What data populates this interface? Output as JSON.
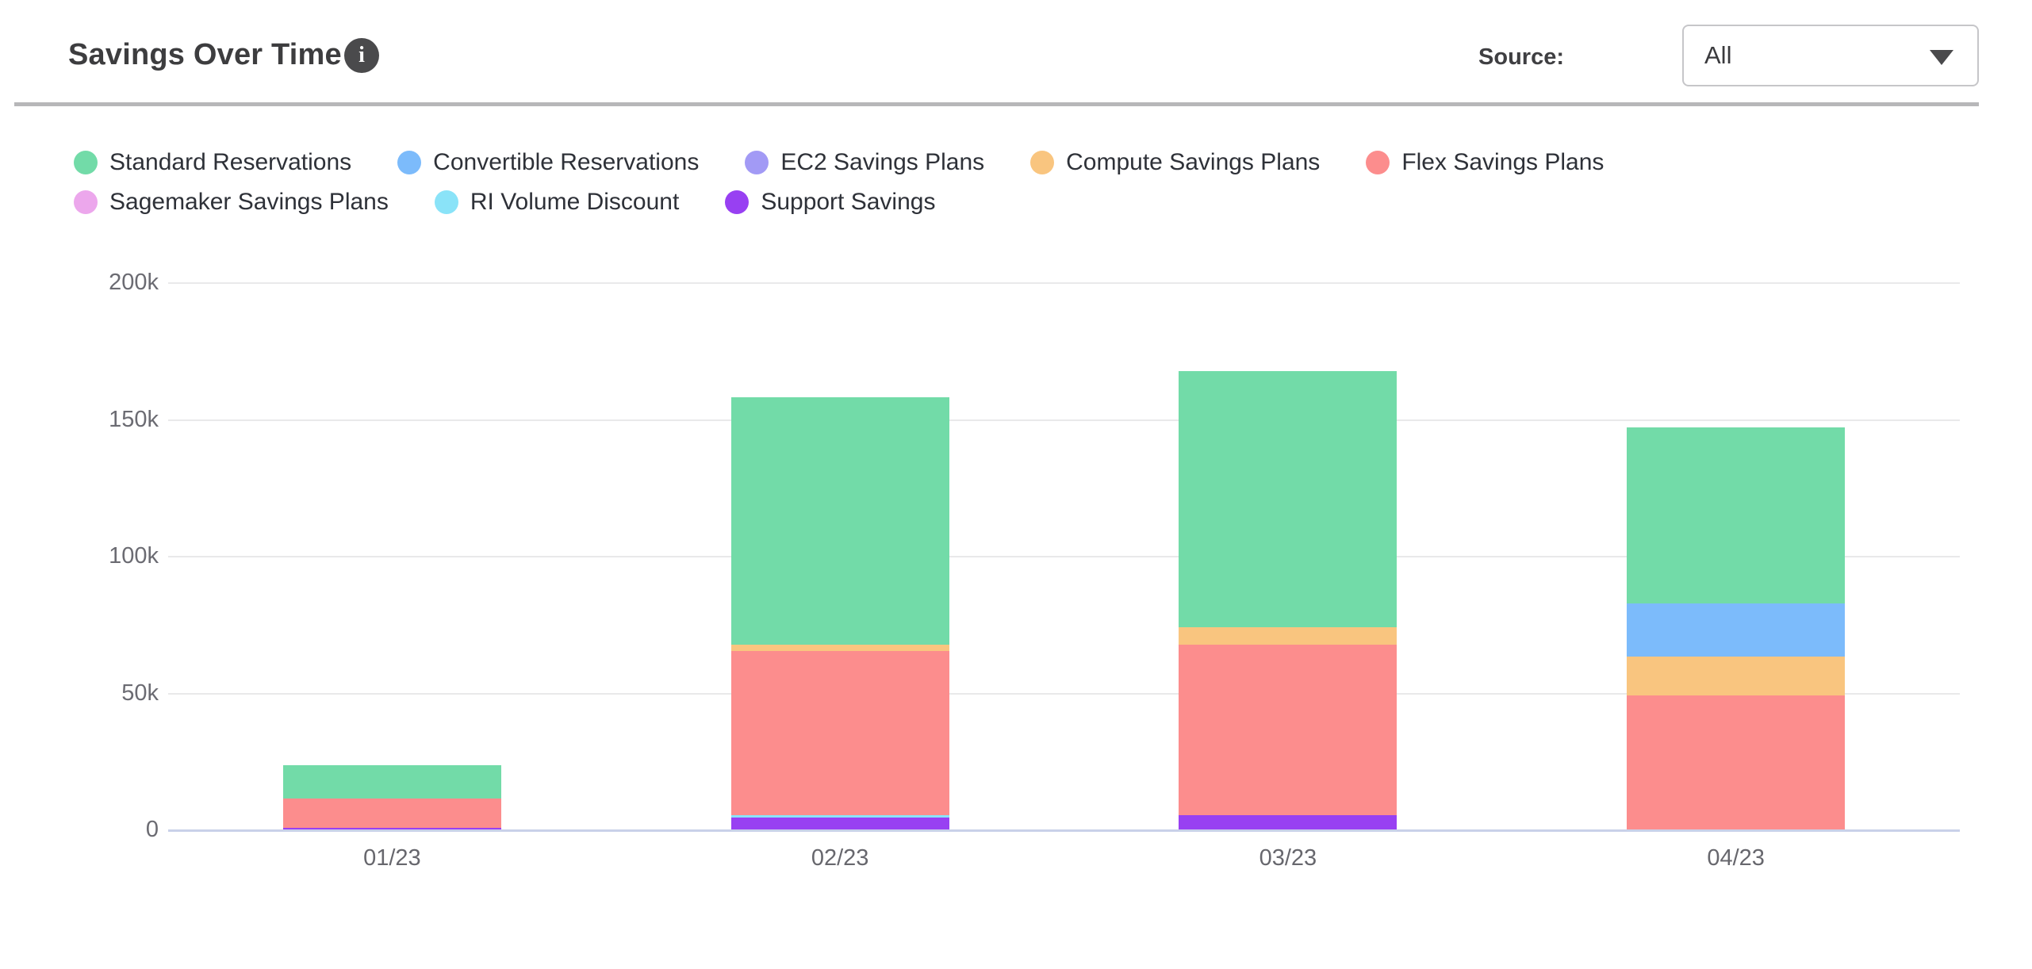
{
  "header": {
    "title": "Savings Over Time",
    "info_icon": "info",
    "source_label": "Source:",
    "source_value": "All"
  },
  "legend": {
    "position": "top",
    "items": [
      {
        "label": "Standard Reservations",
        "color": "#72DBA8"
      },
      {
        "label": "Convertible Reservations",
        "color": "#7CBBFB"
      },
      {
        "label": "EC2 Savings Plans",
        "color": "#A29AF5"
      },
      {
        "label": "Compute Savings Plans",
        "color": "#F9C57F"
      },
      {
        "label": "Flex Savings Plans",
        "color": "#FC8D8D"
      },
      {
        "label": "Sagemaker Savings Plans",
        "color": "#ECA7EC"
      },
      {
        "label": "RI Volume Discount",
        "color": "#8AE3F8"
      },
      {
        "label": "Support Savings",
        "color": "#9840F2"
      }
    ]
  },
  "chart_data": {
    "type": "bar",
    "stacked": true,
    "title": "Savings Over Time",
    "xlabel": "",
    "ylabel": "",
    "categories": [
      "01/23",
      "02/23",
      "03/23",
      "04/23"
    ],
    "series": [
      {
        "name": "Standard Reservations",
        "color": "#72DBA8",
        "values": [
          12200,
          90500,
          93400,
          64500
        ]
      },
      {
        "name": "Convertible Reservations",
        "color": "#7CBBFB",
        "values": [
          0,
          0,
          0,
          19300
        ]
      },
      {
        "name": "EC2 Savings Plans",
        "color": "#A29AF5",
        "values": [
          0,
          0,
          0,
          0
        ]
      },
      {
        "name": "Compute Savings Plans",
        "color": "#F9C57F",
        "values": [
          0,
          2500,
          6600,
          14200
        ]
      },
      {
        "name": "Flex Savings Plans",
        "color": "#FC8D8D",
        "values": [
          10500,
          60000,
          62300,
          49300
        ]
      },
      {
        "name": "Sagemaker Savings Plans",
        "color": "#ECA7EC",
        "values": [
          0,
          0,
          0,
          0
        ]
      },
      {
        "name": "RI Volume Discount",
        "color": "#8AE3F8",
        "values": [
          0,
          800,
          0,
          0
        ]
      },
      {
        "name": "Support Savings",
        "color": "#9840F2",
        "values": [
          1000,
          4600,
          5400,
          0
        ]
      }
    ],
    "stack_order_bottom_to_top": [
      "Support Savings",
      "RI Volume Discount",
      "Sagemaker Savings Plans",
      "Flex Savings Plans",
      "Compute Savings Plans",
      "EC2 Savings Plans",
      "Convertible Reservations",
      "Standard Reservations"
    ],
    "totals": [
      23700,
      158400,
      167700,
      147300
    ],
    "ylim": [
      0,
      200000
    ],
    "ytick_values": [
      0,
      50000,
      100000,
      150000,
      200000
    ],
    "ytick_labels": [
      "0",
      "50k",
      "100k",
      "150k",
      "200k"
    ],
    "grid": "horizontal",
    "legend_position": "top"
  }
}
